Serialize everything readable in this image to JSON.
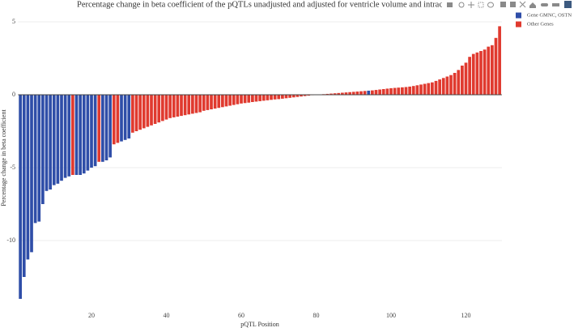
{
  "chart_data": {
    "type": "bar",
    "title": "Percentage change in beta coefficient of the pQTLs unadjusted and adjusted for ventricle volume and intracranial volume",
    "x_label": "pQTL Position",
    "y_label": "Percentage change in beta coefficient",
    "xlim": [
      0.4,
      129.6
    ],
    "xticks": [
      20,
      40,
      60,
      80,
      100,
      120
    ],
    "ylim": [
      -14.1,
      5.5
    ],
    "yticks": [
      -10,
      -5,
      0,
      5
    ],
    "grid": true,
    "legend": "top-right",
    "series": [
      {
        "name": "Gene GMNC, OSTN",
        "color": "#2f4ea8",
        "x": [
          1,
          2,
          3,
          4,
          5,
          6,
          7,
          8,
          9,
          10,
          11,
          12,
          13,
          14,
          16,
          17,
          18,
          19,
          20,
          21,
          23,
          24,
          25,
          28,
          29,
          30,
          94
        ],
        "values": [
          -14,
          -12.5,
          -11.3,
          -10.8,
          -8.8,
          -8.7,
          -7.5,
          -6.6,
          -6.5,
          -6.2,
          -6.1,
          -5.9,
          -5.7,
          -5.6,
          -5.5,
          -5.5,
          -5.4,
          -5.2,
          -5,
          -4.9,
          -4.6,
          -4.5,
          -4.3,
          -3.2,
          -3.1,
          -3,
          0.28
        ]
      },
      {
        "name": "Other Genes",
        "color": "#e03a2f",
        "x": [
          15,
          22,
          26,
          27,
          31,
          32,
          33,
          34,
          35,
          36,
          37,
          38,
          39,
          40,
          41,
          42,
          43,
          44,
          45,
          46,
          47,
          48,
          49,
          50,
          51,
          52,
          53,
          54,
          55,
          56,
          57,
          58,
          59,
          60,
          61,
          62,
          63,
          64,
          65,
          66,
          67,
          68,
          69,
          70,
          71,
          72,
          73,
          74,
          75,
          76,
          77,
          78,
          79,
          80,
          81,
          82,
          83,
          84,
          85,
          86,
          87,
          88,
          89,
          90,
          91,
          92,
          93,
          95,
          96,
          97,
          98,
          99,
          100,
          101,
          102,
          103,
          104,
          105,
          106,
          107,
          108,
          109,
          110,
          111,
          112,
          113,
          114,
          115,
          116,
          117,
          118,
          119,
          120,
          121,
          122,
          123,
          124,
          125,
          126,
          127,
          128,
          129
        ],
        "values": [
          -5.5,
          -4.6,
          -3.4,
          -3.3,
          -2.6,
          -2.5,
          -2.4,
          -2.3,
          -2.2,
          -2.1,
          -2,
          -1.9,
          -1.8,
          -1.7,
          -1.6,
          -1.55,
          -1.5,
          -1.45,
          -1.4,
          -1.35,
          -1.3,
          -1.25,
          -1.2,
          -1.1,
          -1.05,
          -1,
          -0.95,
          -0.9,
          -0.85,
          -0.8,
          -0.75,
          -0.7,
          -0.65,
          -0.6,
          -0.57,
          -0.54,
          -0.5,
          -0.47,
          -0.44,
          -0.41,
          -0.38,
          -0.35,
          -0.32,
          -0.3,
          -0.27,
          -0.24,
          -0.21,
          -0.18,
          -0.15,
          -0.12,
          -0.09,
          -0.06,
          -0.03,
          -0.01,
          0.02,
          0.04,
          0.06,
          0.08,
          0.1,
          0.12,
          0.14,
          0.16,
          0.18,
          0.2,
          0.22,
          0.24,
          0.26,
          0.3,
          0.33,
          0.36,
          0.39,
          0.42,
          0.45,
          0.47,
          0.49,
          0.51,
          0.53,
          0.56,
          0.6,
          0.65,
          0.7,
          0.75,
          0.8,
          0.85,
          0.95,
          1.05,
          1.15,
          1.25,
          1.35,
          1.5,
          1.7,
          2,
          2.2,
          2.6,
          2.8,
          2.9,
          3,
          3.1,
          3.3,
          3.4,
          3.9,
          4.7
        ]
      }
    ]
  }
}
